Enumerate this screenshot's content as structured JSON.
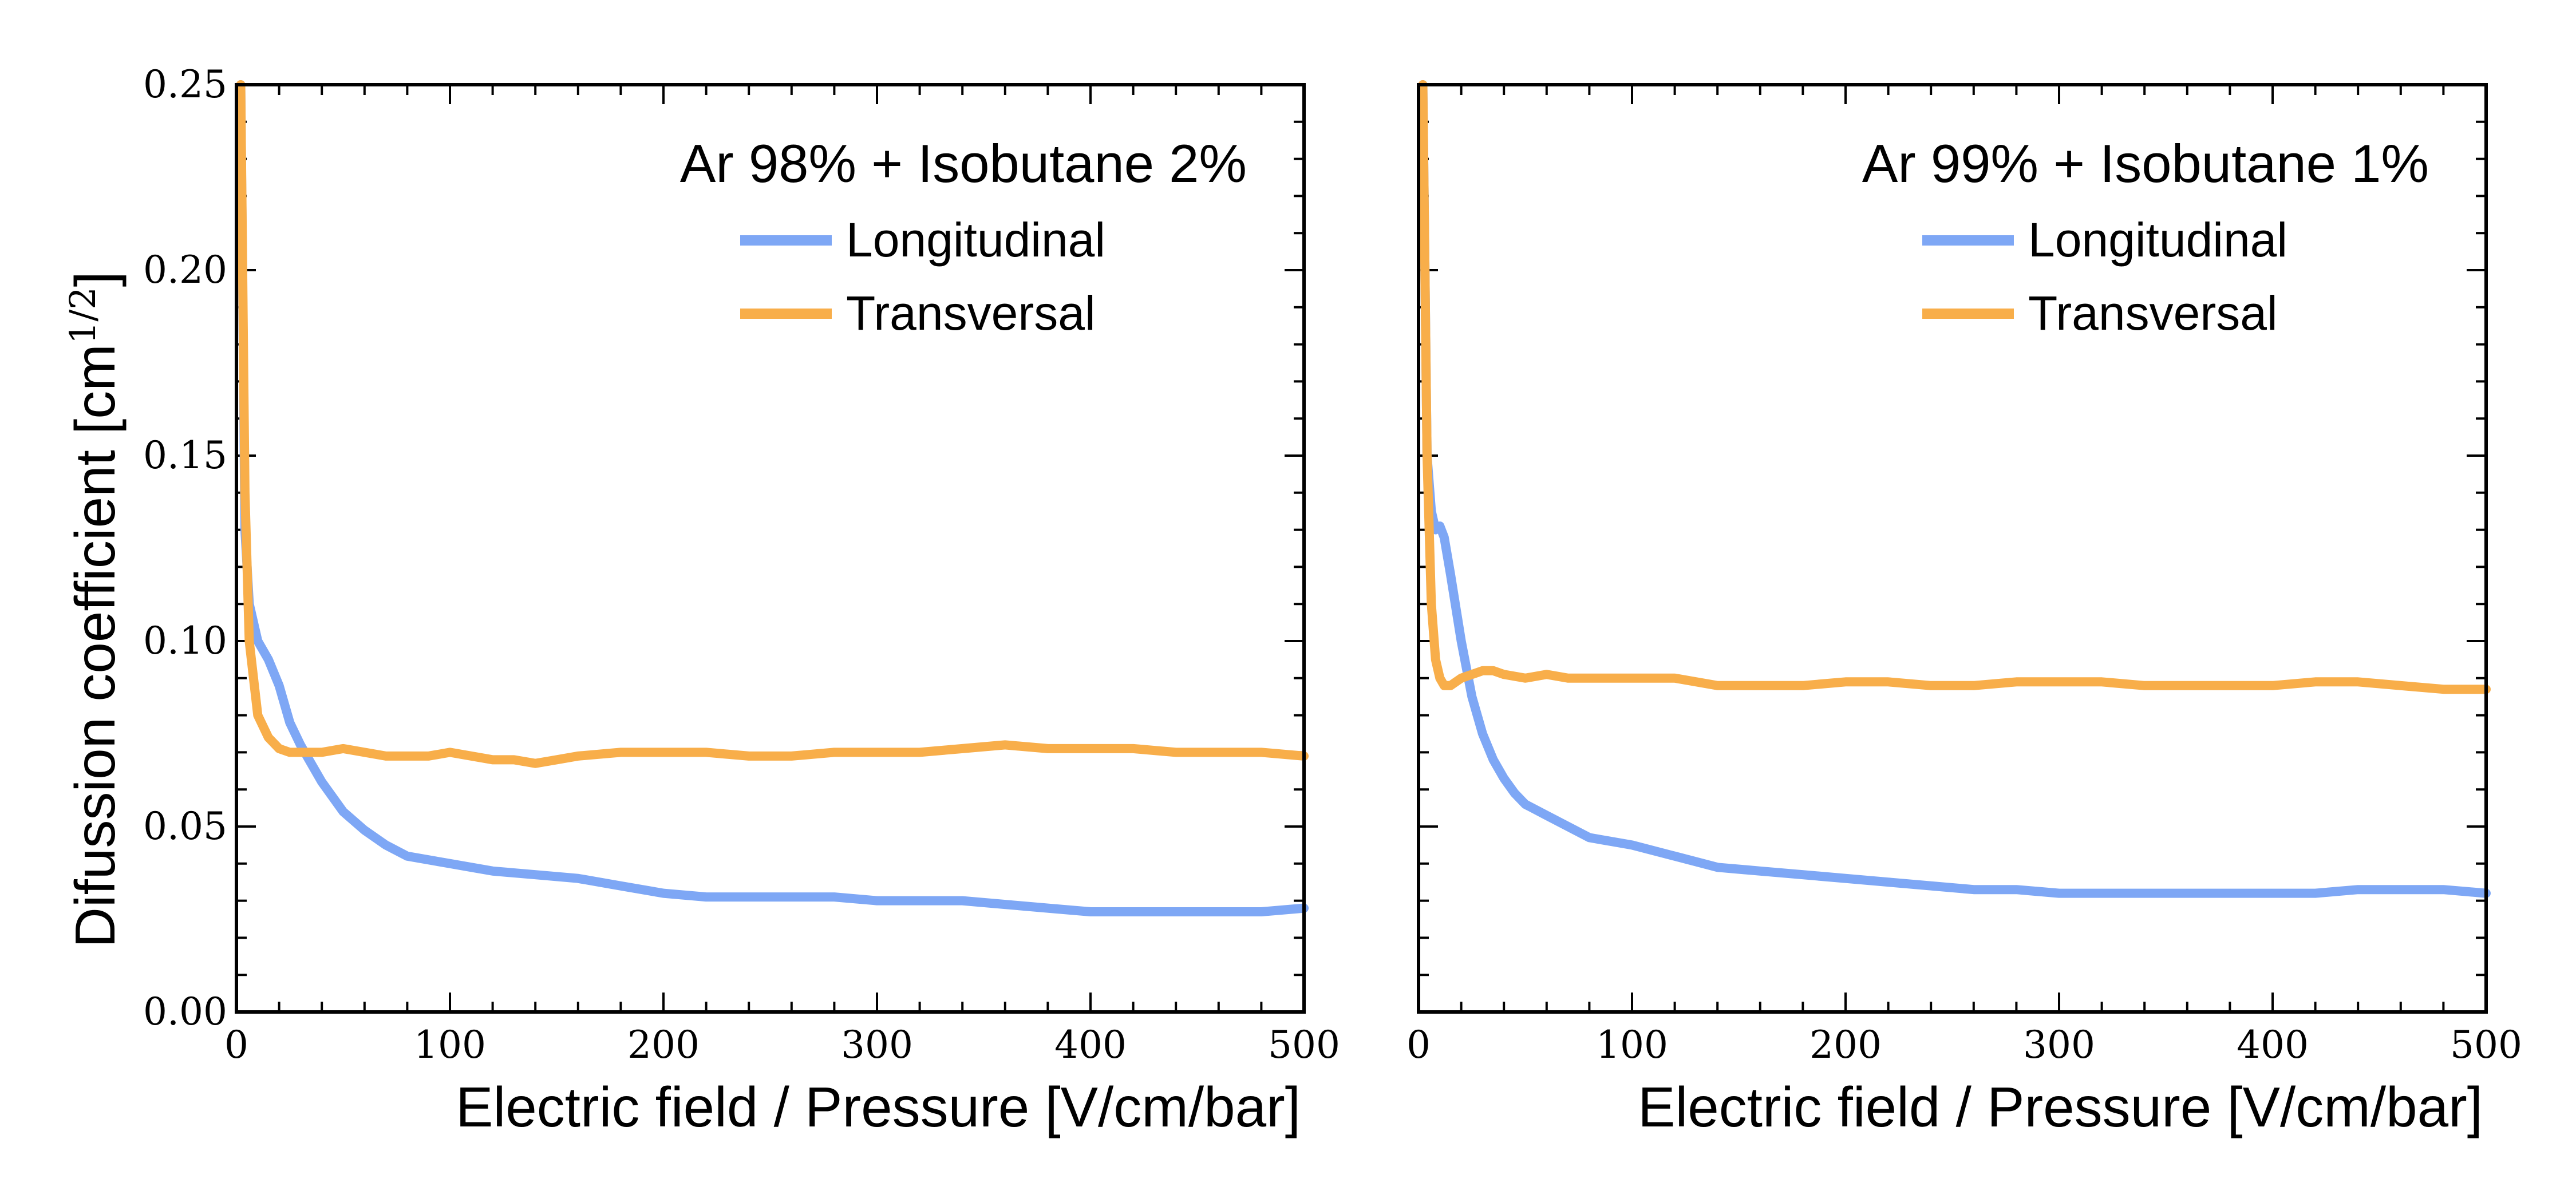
{
  "colors": {
    "longitudinal": "#7ea7f5",
    "transversal": "#f8ae4a"
  },
  "chart_data": [
    {
      "type": "line",
      "title": "Ar 98% + Isobutane 2%",
      "xlabel": "Electric field / Pressure [V/cm/bar]",
      "ylabel": "Difussion coefficient [cm",
      "ylabel_sup": "1/2",
      "ylabel_close": "]",
      "xlim": [
        0,
        500
      ],
      "ylim": [
        0,
        0.25
      ],
      "xticks": [
        "0",
        "100",
        "200",
        "300",
        "400",
        "500"
      ],
      "yticks": [
        "0.00",
        "0.05",
        "0.10",
        "0.15",
        "0.20",
        "0.25"
      ],
      "legend_position": "top-right",
      "series": [
        {
          "name": "Longitudinal",
          "color_key": "longitudinal",
          "x": [
            2,
            4,
            6,
            10,
            15,
            20,
            25,
            30,
            35,
            40,
            45,
            50,
            60,
            70,
            80,
            90,
            100,
            120,
            140,
            160,
            180,
            200,
            220,
            240,
            260,
            280,
            300,
            320,
            340,
            360,
            380,
            400,
            420,
            440,
            460,
            480,
            500
          ],
          "y": [
            0.25,
            0.13,
            0.11,
            0.1,
            0.095,
            0.088,
            0.078,
            0.072,
            0.067,
            0.062,
            0.058,
            0.054,
            0.049,
            0.045,
            0.042,
            0.041,
            0.04,
            0.038,
            0.037,
            0.036,
            0.034,
            0.032,
            0.031,
            0.031,
            0.031,
            0.031,
            0.03,
            0.03,
            0.03,
            0.029,
            0.028,
            0.027,
            0.027,
            0.027,
            0.027,
            0.027,
            0.028
          ]
        },
        {
          "name": "Transversal",
          "color_key": "transversal",
          "x": [
            2,
            4,
            6,
            10,
            15,
            20,
            25,
            30,
            40,
            50,
            60,
            70,
            80,
            90,
            100,
            110,
            120,
            130,
            140,
            150,
            160,
            180,
            200,
            220,
            240,
            260,
            280,
            300,
            320,
            340,
            360,
            380,
            400,
            420,
            440,
            460,
            480,
            500
          ],
          "y": [
            0.25,
            0.14,
            0.1,
            0.08,
            0.074,
            0.071,
            0.07,
            0.07,
            0.07,
            0.071,
            0.07,
            0.069,
            0.069,
            0.069,
            0.07,
            0.069,
            0.068,
            0.068,
            0.067,
            0.068,
            0.069,
            0.07,
            0.07,
            0.07,
            0.069,
            0.069,
            0.07,
            0.07,
            0.07,
            0.071,
            0.072,
            0.071,
            0.071,
            0.071,
            0.07,
            0.07,
            0.07,
            0.069
          ]
        }
      ]
    },
    {
      "type": "line",
      "title": "Ar 99% + Isobutane 1%",
      "xlabel": "Electric field / Pressure [V/cm/bar]",
      "xlim": [
        0,
        500
      ],
      "ylim": [
        0,
        0.25
      ],
      "xticks": [
        "0",
        "100",
        "200",
        "300",
        "400",
        "500"
      ],
      "yticks": [],
      "legend_position": "top-right",
      "series": [
        {
          "name": "Longitudinal",
          "color_key": "longitudinal",
          "x": [
            2,
            4,
            6,
            8,
            10,
            12,
            15,
            20,
            25,
            30,
            35,
            40,
            45,
            50,
            60,
            70,
            80,
            90,
            100,
            120,
            140,
            160,
            180,
            200,
            220,
            240,
            260,
            280,
            300,
            320,
            340,
            360,
            380,
            400,
            420,
            440,
            460,
            480,
            500
          ],
          "y": [
            0.25,
            0.15,
            0.135,
            0.13,
            0.131,
            0.128,
            0.118,
            0.1,
            0.085,
            0.075,
            0.068,
            0.063,
            0.059,
            0.056,
            0.053,
            0.05,
            0.047,
            0.046,
            0.045,
            0.042,
            0.039,
            0.038,
            0.037,
            0.036,
            0.035,
            0.034,
            0.033,
            0.033,
            0.032,
            0.032,
            0.032,
            0.032,
            0.032,
            0.032,
            0.032,
            0.033,
            0.033,
            0.033,
            0.032
          ]
        },
        {
          "name": "Transversal",
          "color_key": "transversal",
          "x": [
            2,
            4,
            6,
            8,
            10,
            12,
            15,
            20,
            25,
            30,
            35,
            40,
            50,
            60,
            70,
            80,
            90,
            100,
            120,
            140,
            160,
            180,
            200,
            220,
            240,
            260,
            280,
            300,
            320,
            340,
            360,
            380,
            400,
            420,
            440,
            460,
            480,
            500
          ],
          "y": [
            0.25,
            0.15,
            0.11,
            0.095,
            0.09,
            0.088,
            0.088,
            0.09,
            0.091,
            0.092,
            0.092,
            0.091,
            0.09,
            0.091,
            0.09,
            0.09,
            0.09,
            0.09,
            0.09,
            0.088,
            0.088,
            0.088,
            0.089,
            0.089,
            0.088,
            0.088,
            0.089,
            0.089,
            0.089,
            0.088,
            0.088,
            0.088,
            0.088,
            0.089,
            0.089,
            0.088,
            0.087,
            0.087
          ]
        }
      ]
    }
  ]
}
